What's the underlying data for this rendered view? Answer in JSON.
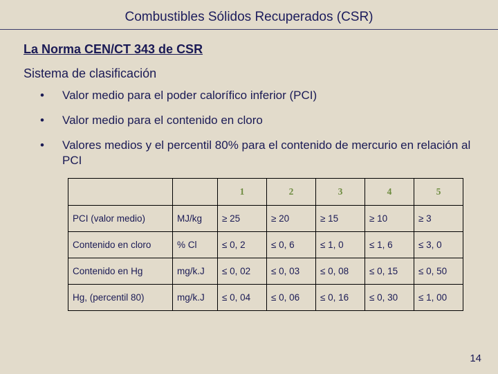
{
  "title": "Combustibles Sólidos Recuperados (CSR)",
  "subtitle": "La Norma CEN/CT 343 de CSR",
  "section_label": "Sistema de clasificación",
  "bullets": [
    "Valor medio para el poder calorífico inferior (PCI)",
    "Valor medio para el contenido en cloro",
    "Valores medios y el percentil 80% para el contenido de mercurio en relación al PCI"
  ],
  "table": {
    "class_headers": [
      "1",
      "2",
      "3",
      "4",
      "5"
    ],
    "rows": [
      {
        "param": "PCI (valor medio)",
        "unit": "MJ/kg",
        "vals": [
          "≥ 25",
          "≥ 20",
          "≥ 15",
          "≥ 10",
          "≥ 3"
        ]
      },
      {
        "param": "Contenido en cloro",
        "unit": "% Cl",
        "vals": [
          "≤ 0, 2",
          "≤ 0, 6",
          "≤ 1, 0",
          "≤ 1, 6",
          "≤ 3, 0"
        ]
      },
      {
        "param": "Contenido en Hg",
        "unit": "mg/k.J",
        "vals": [
          "≤ 0, 02",
          "≤ 0, 03",
          "≤ 0, 08",
          "≤ 0, 15",
          "≤ 0, 50"
        ]
      },
      {
        "param": "Hg, (percentil 80)",
        "unit": "mg/k.J",
        "vals": [
          "≤ 0, 04",
          "≤ 0, 06",
          "≤ 0, 16",
          "≤ 0, 30",
          "≤ 1, 00"
        ]
      }
    ],
    "header_color": "#6e8c40",
    "border_color": "#000000",
    "cell_font_size": 13.5
  },
  "page_number": "14",
  "colors": {
    "background": "#e2dbcb",
    "text": "#1a1a55"
  }
}
